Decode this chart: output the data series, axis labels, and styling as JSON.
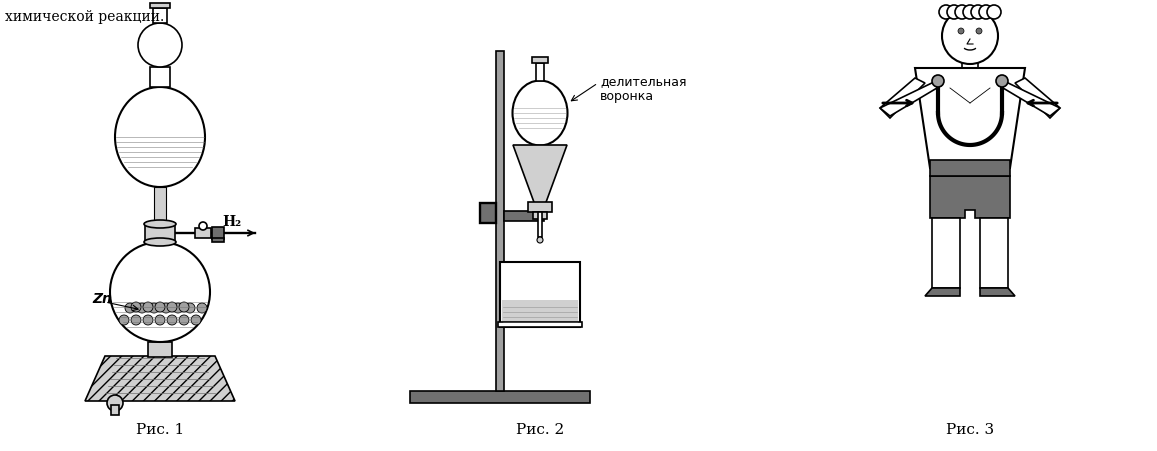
{
  "title_text": "химической реакции.",
  "fig1_label": "Рис. 1",
  "fig2_label": "Рис. 2",
  "fig3_label": "Рис. 3",
  "fig2_annotation": "делительная\nворонка",
  "fig1_zn_label": "Zn",
  "fig1_h2_label": "H₂",
  "bg_color": "#ffffff",
  "line_color": "#000000",
  "gray_light": "#d0d0d0",
  "gray_medium": "#a0a0a0",
  "gray_dark": "#707070",
  "hatch_gray": "#c8c8c8"
}
